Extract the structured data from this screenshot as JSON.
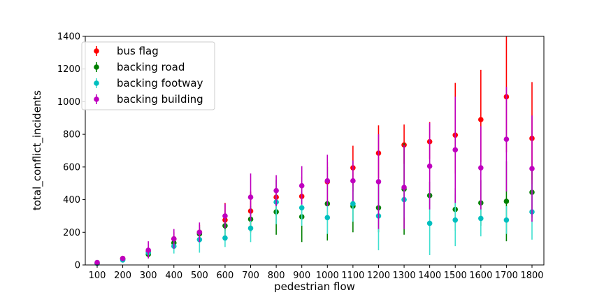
{
  "chart_data": {
    "type": "scatter",
    "title": "",
    "xlabel": "pedestrian flow",
    "ylabel": "total_conflict_incidents",
    "x": [
      100,
      200,
      300,
      400,
      500,
      600,
      700,
      800,
      900,
      1000,
      1100,
      1200,
      1300,
      1400,
      1500,
      1600,
      1700,
      1800
    ],
    "ylim": [
      0,
      1400
    ],
    "yticks": [
      0,
      200,
      400,
      600,
      800,
      1000,
      1200,
      1400
    ],
    "grid": false,
    "legend_position": "top-left",
    "error_bars": true,
    "series": [
      {
        "name": "bus flag",
        "color": "#ff0000",
        "bar_color": "#ff0000",
        "values": [
          10,
          40,
          85,
          160,
          200,
          275,
          330,
          415,
          420,
          510,
          595,
          685,
          735,
          755,
          795,
          890,
          1030,
          775
        ],
        "lower": [
          5,
          30,
          60,
          120,
          155,
          210,
          200,
          300,
          300,
          390,
          450,
          530,
          620,
          650,
          560,
          630,
          690,
          520
        ],
        "upper": [
          15,
          50,
          110,
          200,
          245,
          380,
          450,
          520,
          540,
          630,
          730,
          855,
          860,
          875,
          1115,
          1195,
          1400,
          1120
        ]
      },
      {
        "name": "backing road",
        "color": "#008000",
        "bar_color": "#008000",
        "values": [
          10,
          35,
          65,
          135,
          190,
          240,
          280,
          325,
          295,
          375,
          360,
          350,
          465,
          425,
          340,
          380,
          390,
          445
        ],
        "lower": [
          5,
          28,
          48,
          95,
          150,
          170,
          200,
          185,
          140,
          150,
          200,
          200,
          185,
          340,
          210,
          240,
          145,
          290
        ],
        "upper": [
          15,
          42,
          82,
          175,
          230,
          310,
          360,
          470,
          450,
          600,
          520,
          500,
          745,
          510,
          470,
          520,
          635,
          600
        ]
      },
      {
        "name": "backing footway",
        "color": "#00bfbf",
        "bar_color": "#40e0d0",
        "values": [
          10,
          30,
          75,
          115,
          155,
          165,
          225,
          385,
          350,
          290,
          375,
          300,
          400,
          255,
          275,
          285,
          275,
          325
        ],
        "lower": [
          5,
          22,
          55,
          70,
          75,
          110,
          140,
          250,
          240,
          190,
          265,
          90,
          290,
          60,
          115,
          175,
          190,
          155
        ],
        "upper": [
          15,
          38,
          95,
          160,
          235,
          220,
          310,
          520,
          460,
          390,
          485,
          510,
          510,
          450,
          435,
          395,
          360,
          495
        ]
      },
      {
        "name": "backing building",
        "color": "#bf00bf",
        "bar_color": "#bf00bf",
        "values": [
          15,
          40,
          90,
          160,
          200,
          300,
          415,
          455,
          485,
          515,
          515,
          510,
          475,
          605,
          705,
          595,
          770,
          590
        ],
        "lower": [
          10,
          30,
          40,
          100,
          140,
          225,
          270,
          360,
          370,
          360,
          390,
          220,
          220,
          340,
          380,
          340,
          450,
          265
        ],
        "upper": [
          20,
          50,
          145,
          220,
          260,
          375,
          560,
          550,
          605,
          675,
          640,
          800,
          735,
          870,
          1030,
          850,
          1090,
          915
        ]
      }
    ]
  }
}
